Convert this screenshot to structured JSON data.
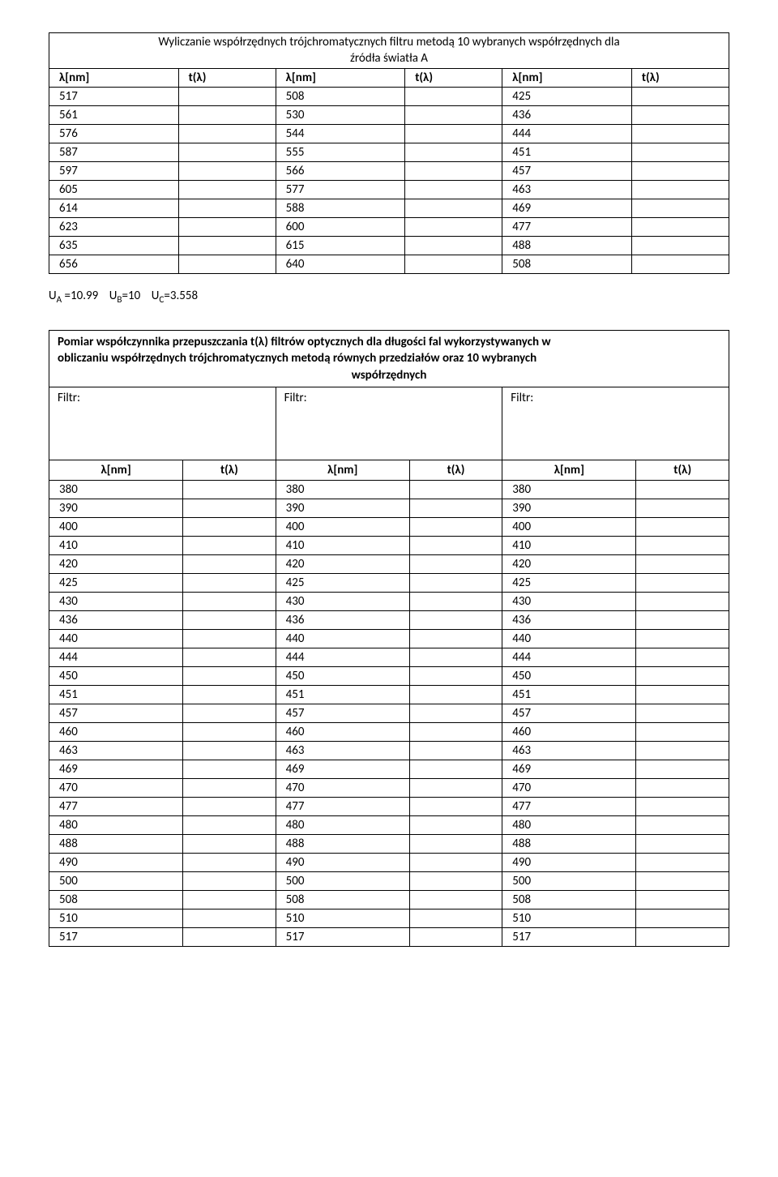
{
  "table1": {
    "title_line1": "Wyliczanie współrzędnych trójchromatycznych filtru metodą 10 wybranych współrzędnych  dla",
    "title_line2": "źródła światła A",
    "headers": [
      "λ[nm]",
      "t(λ)",
      "λ[nm]",
      "t(λ)",
      "λ[nm]",
      "t(λ)"
    ],
    "rows": [
      [
        "517",
        "",
        "508",
        "",
        "425",
        ""
      ],
      [
        "561",
        "",
        "530",
        "",
        "436",
        ""
      ],
      [
        "576",
        "",
        "544",
        "",
        "444",
        ""
      ],
      [
        "587",
        "",
        "555",
        "",
        "451",
        ""
      ],
      [
        "597",
        "",
        "566",
        "",
        "457",
        ""
      ],
      [
        "605",
        "",
        "577",
        "",
        "463",
        ""
      ],
      [
        "614",
        "",
        "588",
        "",
        "469",
        ""
      ],
      [
        "623",
        "",
        "600",
        "",
        "477",
        ""
      ],
      [
        "635",
        "",
        "615",
        "",
        "488",
        ""
      ],
      [
        "656",
        "",
        "640",
        "",
        "508",
        ""
      ]
    ]
  },
  "formula": {
    "ua_label": "U",
    "ua_sub": "A",
    "ua_val": " =10.99",
    "ub_label": "U",
    "ub_sub": "B",
    "ub_val": "=10",
    "uc_label": "U",
    "uc_sub": "C",
    "uc_val": "=3.558"
  },
  "table2": {
    "title_line1": "Pomiar współczynnika przepuszczania t(λ) filtrów optycznych dla długości fal wykorzystywanych w",
    "title_line2": "obliczaniu współrzędnych trójchromatycznych metodą równych przedziałów oraz 10 wybranych",
    "title_line3": "współrzędnych",
    "filtr_label": "Filtr:",
    "headers": [
      "λ[nm]",
      "t(λ)",
      "λ[nm]",
      "t(λ)",
      "λ[nm]",
      "t(λ)"
    ],
    "col_vals": [
      "380",
      "390",
      "400",
      "410",
      "420",
      "425",
      "430",
      "436",
      "440",
      "444",
      "450",
      "451",
      "457",
      "460",
      "463",
      "469",
      "470",
      "477",
      "480",
      "488",
      "490",
      "500",
      "508",
      "510",
      "517"
    ]
  }
}
